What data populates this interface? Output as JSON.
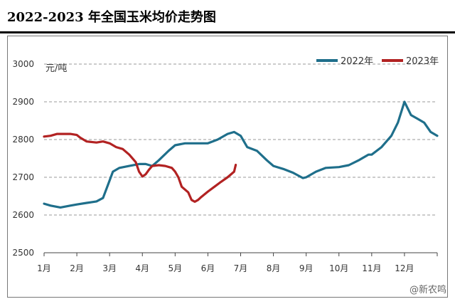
{
  "title": "2022-2023 年全国玉米均价走势图",
  "watermark": "@新农鸣",
  "chart_data": {
    "type": "line",
    "title": "2022-2023 年全国玉米均价走势图",
    "ylabel": "元/吨",
    "xlabel": "",
    "ylim": [
      2500,
      3000
    ],
    "yticks": [
      2500,
      2600,
      2700,
      2800,
      2900,
      3000
    ],
    "xlim": [
      1,
      13
    ],
    "categories": [
      "1月",
      "2月",
      "3月",
      "4月",
      "5月",
      "6月",
      "7月",
      "8月",
      "9月",
      "10月",
      "11月",
      "12月"
    ],
    "grid": "horizontal-dashed",
    "legend_position": "top-right",
    "series": [
      {
        "name": "2022年",
        "color": "#1f6f8b",
        "x": [
          1.0,
          1.2,
          1.5,
          1.8,
          2.0,
          2.3,
          2.6,
          2.8,
          2.95,
          3.1,
          3.3,
          3.6,
          3.9,
          4.1,
          4.3,
          4.5,
          4.8,
          5.0,
          5.3,
          5.6,
          6.0,
          6.3,
          6.6,
          6.8,
          7.0,
          7.2,
          7.5,
          7.8,
          8.0,
          8.3,
          8.6,
          8.9,
          9.0,
          9.3,
          9.6,
          10.0,
          10.3,
          10.6,
          10.9,
          11.0,
          11.3,
          11.6,
          11.8,
          12.0,
          12.2,
          12.4,
          12.6,
          12.8,
          13.0
        ],
        "values": [
          2630,
          2625,
          2620,
          2625,
          2628,
          2632,
          2636,
          2645,
          2680,
          2715,
          2725,
          2730,
          2735,
          2735,
          2730,
          2745,
          2770,
          2785,
          2790,
          2790,
          2790,
          2800,
          2815,
          2820,
          2810,
          2780,
          2770,
          2745,
          2730,
          2722,
          2712,
          2698,
          2700,
          2715,
          2725,
          2727,
          2732,
          2745,
          2760,
          2760,
          2780,
          2810,
          2845,
          2900,
          2865,
          2855,
          2845,
          2820,
          2810
        ]
      },
      {
        "name": "2023年",
        "color": "#b22222",
        "x": [
          1.0,
          1.2,
          1.4,
          1.6,
          1.8,
          2.0,
          2.1,
          2.3,
          2.6,
          2.8,
          3.0,
          3.2,
          3.4,
          3.6,
          3.8,
          3.9,
          4.0,
          4.1,
          4.2,
          4.3,
          4.5,
          4.7,
          4.9,
          5.0,
          5.1,
          5.2,
          5.4,
          5.5,
          5.6,
          5.7,
          5.8,
          5.9,
          6.0,
          6.2,
          6.4,
          6.6,
          6.8,
          6.85
        ],
        "values": [
          2808,
          2810,
          2815,
          2815,
          2815,
          2812,
          2805,
          2795,
          2792,
          2795,
          2790,
          2780,
          2775,
          2760,
          2740,
          2715,
          2702,
          2708,
          2720,
          2730,
          2732,
          2730,
          2725,
          2715,
          2700,
          2675,
          2660,
          2640,
          2635,
          2640,
          2648,
          2655,
          2662,
          2675,
          2688,
          2700,
          2715,
          2733
        ]
      }
    ]
  }
}
